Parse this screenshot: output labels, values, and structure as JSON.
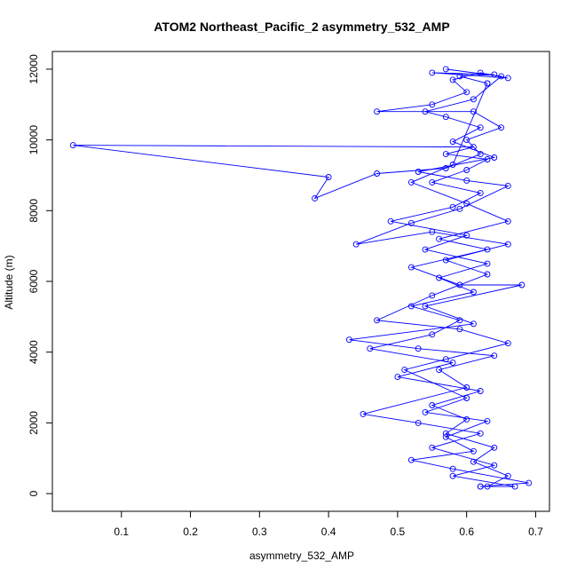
{
  "chart_data": {
    "type": "line",
    "title": "ATOM2 Northeast_Pacific_2 asymmetry_532_AMP",
    "xlabel": "asymmetry_532_AMP",
    "ylabel": "Altitude (m)",
    "xlim": [
      0.0,
      0.72
    ],
    "ylim": [
      -500,
      12500
    ],
    "xticks": [
      0.1,
      0.2,
      0.3,
      0.4,
      0.5,
      0.6,
      0.7
    ],
    "xtick_labels": [
      "0.1",
      "0.2",
      "0.3",
      "0.4",
      "0.5",
      "0.6",
      "0.7"
    ],
    "yticks": [
      0,
      2000,
      4000,
      6000,
      8000,
      10000,
      12000
    ],
    "ytick_labels": [
      "0",
      "2000",
      "4000",
      "6000",
      "8000",
      "10000",
      "12000"
    ],
    "grid": false,
    "series": [
      {
        "color": "#0000ff",
        "marker": "open-circle",
        "points": [
          [
            0.63,
            200
          ],
          [
            0.66,
            500
          ],
          [
            0.61,
            900
          ],
          [
            0.64,
            1300
          ],
          [
            0.57,
            1700
          ],
          [
            0.6,
            2100
          ],
          [
            0.55,
            2500
          ],
          [
            0.62,
            2900
          ],
          [
            0.5,
            3300
          ],
          [
            0.58,
            3700
          ],
          [
            0.46,
            4100
          ],
          [
            0.55,
            4500
          ],
          [
            0.59,
            4900
          ],
          [
            0.52,
            5300
          ],
          [
            0.61,
            5700
          ],
          [
            0.56,
            6100
          ],
          [
            0.63,
            6500
          ],
          [
            0.54,
            6900
          ],
          [
            0.6,
            7300
          ],
          [
            0.49,
            7700
          ],
          [
            0.58,
            8100
          ],
          [
            0.62,
            8500
          ],
          [
            0.55,
            8800
          ],
          [
            0.6,
            9150
          ],
          [
            0.63,
            9450
          ],
          [
            0.57,
            9600
          ],
          [
            0.61,
            9800
          ],
          [
            0.03,
            9850
          ],
          [
            0.4,
            8950
          ],
          [
            0.38,
            8350
          ],
          [
            0.47,
            9050
          ],
          [
            0.57,
            9200
          ],
          [
            0.62,
            9600
          ],
          [
            0.6,
            10000
          ],
          [
            0.65,
            10350
          ],
          [
            0.61,
            10800
          ],
          [
            0.47,
            10800
          ],
          [
            0.55,
            11000
          ],
          [
            0.6,
            11350
          ],
          [
            0.58,
            11700
          ],
          [
            0.62,
            11900
          ],
          [
            0.66,
            11750
          ],
          [
            0.55,
            11900
          ],
          [
            0.64,
            11850
          ],
          [
            0.59,
            11800
          ],
          [
            0.63,
            11600
          ]
        ]
      },
      {
        "color": "#0000ff",
        "marker": "open-circle",
        "points": [
          [
            0.63,
            11600
          ],
          [
            0.58,
            9300
          ],
          [
            0.52,
            8800
          ],
          [
            0.6,
            8200
          ],
          [
            0.66,
            7700
          ],
          [
            0.56,
            7200
          ],
          [
            0.63,
            6900
          ],
          [
            0.52,
            6400
          ],
          [
            0.59,
            5900
          ],
          [
            0.68,
            5900
          ],
          [
            0.54,
            5300
          ],
          [
            0.61,
            4800
          ],
          [
            0.43,
            4350
          ],
          [
            0.53,
            4100
          ],
          [
            0.64,
            3900
          ],
          [
            0.56,
            3500
          ],
          [
            0.6,
            3000
          ],
          [
            0.45,
            2250
          ],
          [
            0.53,
            2000
          ],
          [
            0.62,
            1700
          ],
          [
            0.55,
            1300
          ],
          [
            0.64,
            800
          ],
          [
            0.58,
            500
          ],
          [
            0.67,
            200
          ],
          [
            0.62,
            200
          ]
        ]
      },
      {
        "color": "#0000ff",
        "marker": "open-circle",
        "points": [
          [
            0.62,
            200
          ],
          [
            0.69,
            300
          ],
          [
            0.58,
            700
          ],
          [
            0.52,
            950
          ],
          [
            0.61,
            1200
          ],
          [
            0.57,
            1600
          ],
          [
            0.63,
            2050
          ],
          [
            0.54,
            2300
          ],
          [
            0.6,
            2700
          ],
          [
            0.51,
            3500
          ],
          [
            0.57,
            3800
          ],
          [
            0.66,
            4250
          ],
          [
            0.59,
            4650
          ],
          [
            0.47,
            4900
          ],
          [
            0.55,
            5600
          ],
          [
            0.63,
            6200
          ],
          [
            0.57,
            6600
          ],
          [
            0.66,
            7050
          ],
          [
            0.55,
            7400
          ],
          [
            0.44,
            7050
          ],
          [
            0.52,
            7650
          ],
          [
            0.59,
            8050
          ],
          [
            0.66,
            8700
          ],
          [
            0.6,
            8850
          ],
          [
            0.53,
            9100
          ],
          [
            0.64,
            9500
          ],
          [
            0.58,
            9950
          ],
          [
            0.62,
            10350
          ],
          [
            0.57,
            10650
          ],
          [
            0.54,
            10800
          ],
          [
            0.61,
            11150
          ],
          [
            0.65,
            11800
          ],
          [
            0.57,
            12000
          ]
        ]
      }
    ]
  }
}
